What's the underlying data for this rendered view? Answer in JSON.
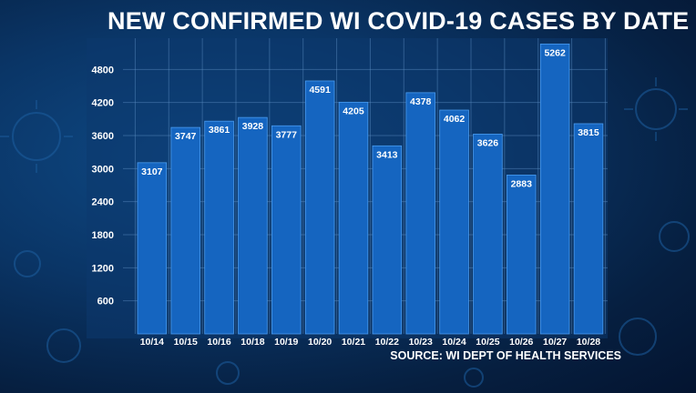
{
  "chart_data": {
    "type": "bar",
    "title": "NEW CONFIRMED WI COVID-19 CASES BY DATE",
    "categories": [
      "10/14",
      "10/15",
      "10/16",
      "10/18",
      "10/19",
      "10/20",
      "10/21",
      "10/22",
      "10/23",
      "10/24",
      "10/25",
      "10/26",
      "10/27",
      "10/28"
    ],
    "values": [
      3107,
      3747,
      3861,
      3928,
      3777,
      4591,
      4205,
      3413,
      4378,
      4062,
      3626,
      2883,
      5262,
      3815
    ],
    "data_labels": [
      "3107",
      "3747",
      "3861",
      "3928",
      "3777",
      "4591",
      "4205",
      "3413",
      "4378",
      "4062",
      "3626",
      "2883",
      "5262",
      "3815"
    ],
    "yticks": [
      "600",
      "1200",
      "1800",
      "2400",
      "3000",
      "3600",
      "4200",
      "4800"
    ],
    "ylim": [
      0,
      5400
    ],
    "xlabel": "",
    "ylabel": "",
    "grid": true,
    "bar_color": "#1565c0",
    "bar_edge_color": "#4a9cf0",
    "grid_color": "#5d8fc4"
  },
  "source": "SOURCE: WI DEPT OF HEALTH SERVICES"
}
